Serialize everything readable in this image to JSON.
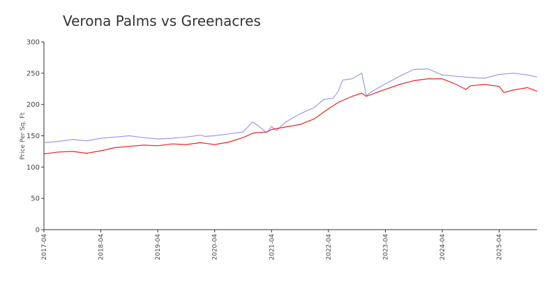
{
  "chart_data": {
    "type": "line",
    "title": "Verona Palms vs Greenacres",
    "xlabel": "",
    "ylabel": "Price Per Sq. Ft",
    "ylim": [
      0,
      300
    ],
    "yticks": [
      "0",
      "50",
      "100",
      "150",
      "200",
      "250",
      "300"
    ],
    "xticks": [
      "2017-04",
      "2018-04",
      "2019-04",
      "2020-04",
      "2021-04",
      "2022-04",
      "2023-04",
      "2024-04",
      "2025-04"
    ],
    "grid": false,
    "legend": "none",
    "x_unit": "month",
    "x_range": [
      "2017-04",
      "2025-12"
    ],
    "series": [
      {
        "color": "#9999ee",
        "values": [
          [
            "2017-04",
            139
          ],
          [
            "2017-07",
            141
          ],
          [
            "2017-10",
            144
          ],
          [
            "2018-01",
            142
          ],
          [
            "2018-04",
            146
          ],
          [
            "2018-07",
            148
          ],
          [
            "2018-10",
            150
          ],
          [
            "2019-01",
            147
          ],
          [
            "2019-04",
            145
          ],
          [
            "2019-07",
            146
          ],
          [
            "2019-10",
            148
          ],
          [
            "2020-01",
            151
          ],
          [
            "2020-02",
            149
          ],
          [
            "2020-04",
            150
          ],
          [
            "2020-07",
            153
          ],
          [
            "2020-10",
            156
          ],
          [
            "2020-12",
            172
          ],
          [
            "2021-01",
            167
          ],
          [
            "2021-03",
            155
          ],
          [
            "2021-04",
            165
          ],
          [
            "2021-05",
            158
          ],
          [
            "2021-07",
            172
          ],
          [
            "2021-10",
            185
          ],
          [
            "2022-01",
            195
          ],
          [
            "2022-03",
            208
          ],
          [
            "2022-05",
            210
          ],
          [
            "2022-06",
            220
          ],
          [
            "2022-07",
            239
          ],
          [
            "2022-09",
            241
          ],
          [
            "2022-11",
            250
          ],
          [
            "2022-12",
            214
          ],
          [
            "2023-01",
            220
          ],
          [
            "2023-04",
            233
          ],
          [
            "2023-07",
            245
          ],
          [
            "2023-10",
            256
          ],
          [
            "2024-01",
            257
          ],
          [
            "2024-04",
            247
          ],
          [
            "2024-07",
            245
          ],
          [
            "2024-10",
            243
          ],
          [
            "2025-01",
            242
          ],
          [
            "2025-04",
            248
          ],
          [
            "2025-07",
            250
          ],
          [
            "2025-10",
            247
          ],
          [
            "2025-12",
            244
          ]
        ]
      },
      {
        "color": "#ee2222",
        "values": [
          [
            "2017-04",
            121
          ],
          [
            "2017-07",
            124
          ],
          [
            "2017-10",
            125
          ],
          [
            "2018-01",
            122
          ],
          [
            "2018-04",
            126
          ],
          [
            "2018-07",
            131
          ],
          [
            "2018-10",
            133
          ],
          [
            "2019-01",
            135
          ],
          [
            "2019-04",
            134
          ],
          [
            "2019-07",
            137
          ],
          [
            "2019-10",
            136
          ],
          [
            "2020-01",
            139
          ],
          [
            "2020-02",
            138
          ],
          [
            "2020-04",
            136
          ],
          [
            "2020-07",
            140
          ],
          [
            "2020-10",
            147
          ],
          [
            "2020-12",
            154
          ],
          [
            "2021-01",
            155
          ],
          [
            "2021-03",
            156
          ],
          [
            "2021-04",
            160
          ],
          [
            "2021-07",
            164
          ],
          [
            "2021-10",
            168
          ],
          [
            "2022-01",
            177
          ],
          [
            "2022-04",
            193
          ],
          [
            "2022-06",
            203
          ],
          [
            "2022-09",
            213
          ],
          [
            "2022-11",
            218
          ],
          [
            "2022-12",
            213
          ],
          [
            "2023-01",
            216
          ],
          [
            "2023-04",
            224
          ],
          [
            "2023-07",
            232
          ],
          [
            "2023-10",
            238
          ],
          [
            "2024-01",
            241
          ],
          [
            "2024-04",
            241
          ],
          [
            "2024-07",
            232
          ],
          [
            "2024-09",
            224
          ],
          [
            "2024-10",
            230
          ],
          [
            "2025-01",
            232
          ],
          [
            "2025-04",
            229
          ],
          [
            "2025-05",
            219
          ],
          [
            "2025-07",
            223
          ],
          [
            "2025-10",
            227
          ],
          [
            "2025-12",
            221
          ]
        ]
      }
    ]
  }
}
